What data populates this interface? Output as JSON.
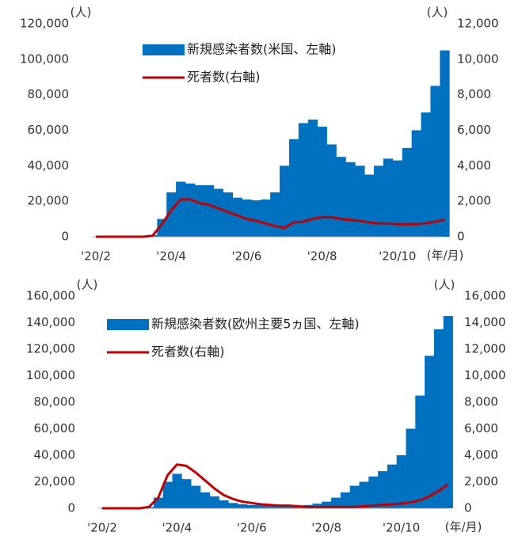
{
  "chart_data": [
    {
      "type": "bar_line",
      "y_unit": "(人)",
      "y2_unit": "(人)",
      "x_unit": "(年/月)",
      "categories": [
        "'20/2",
        null,
        null,
        null,
        null,
        null,
        null,
        null,
        "'20/4",
        null,
        null,
        null,
        null,
        null,
        null,
        null,
        "'20/6",
        null,
        null,
        null,
        null,
        null,
        null,
        null,
        "'20/8",
        null,
        null,
        null,
        null,
        null,
        null,
        null,
        "'20/10",
        null,
        null,
        null,
        null,
        null
      ],
      "series": [
        {
          "name": "新規感染者数(米国、左軸)",
          "type": "bar",
          "color": "#0070c0",
          "values": [
            0,
            0,
            0,
            0,
            0,
            0,
            1000,
            10000,
            25000,
            31000,
            30000,
            29000,
            29000,
            27000,
            25000,
            22000,
            21000,
            20500,
            21000,
            25000,
            40000,
            55000,
            64000,
            66000,
            62000,
            52000,
            45000,
            42000,
            40000,
            35000,
            40000,
            44000,
            43000,
            50000,
            60000,
            70000,
            85000,
            105000
          ]
        },
        {
          "name": "死者数(右軸)",
          "type": "line",
          "axis": "y2",
          "color": "#c00000",
          "values": [
            0,
            0,
            0,
            0,
            0,
            0,
            50,
            700,
            1500,
            2100,
            2100,
            1900,
            1800,
            1600,
            1400,
            1200,
            1000,
            900,
            750,
            600,
            500,
            800,
            850,
            1000,
            1100,
            1100,
            1000,
            950,
            900,
            800,
            750,
            750,
            700,
            700,
            700,
            750,
            850,
            950
          ]
        }
      ],
      "ylim": [
        0,
        120000
      ],
      "yticks": [
        0,
        {
          "value": 20000,
          "label": "20,000"
        },
        {
          "value": 40000,
          "label": "40,000"
        },
        {
          "value": 60000,
          "label": "60,000"
        },
        {
          "value": 80000,
          "label": "80,000"
        },
        {
          "value": 100000,
          "label": "100,000"
        },
        {
          "value": 120000,
          "label": "120,000"
        }
      ],
      "y2lim": [
        0,
        12000
      ],
      "y2ticks": [
        0,
        {
          "value": 2000,
          "label": "2,000"
        },
        {
          "value": 4000,
          "label": "4,000"
        },
        {
          "value": 6000,
          "label": "6,000"
        },
        {
          "value": 8000,
          "label": "8,000"
        },
        {
          "value": 10000,
          "label": "10,000"
        },
        {
          "value": 12000,
          "label": "12,000"
        }
      ]
    },
    {
      "type": "bar_line",
      "y_unit": "(人)",
      "y2_unit": "(人)",
      "x_unit": "(年/月)",
      "categories": [
        "'20/2",
        null,
        null,
        null,
        null,
        null,
        null,
        null,
        "'20/4",
        null,
        null,
        null,
        null,
        null,
        null,
        null,
        "'20/6",
        null,
        null,
        null,
        null,
        null,
        null,
        null,
        "'20/8",
        null,
        null,
        null,
        null,
        null,
        null,
        null,
        "'20/10",
        null,
        null,
        null,
        null,
        null
      ],
      "series": [
        {
          "name": "新規感染者数(欧州主要5ヵ国、左軸)",
          "type": "bar",
          "color": "#0070c0",
          "values": [
            0,
            0,
            0,
            0,
            0,
            1000,
            8000,
            20000,
            26000,
            22000,
            17000,
            12000,
            9000,
            6000,
            4000,
            3000,
            2500,
            2500,
            2000,
            2000,
            2000,
            2000,
            2500,
            3500,
            5000,
            8000,
            12000,
            17000,
            20000,
            24000,
            28000,
            33000,
            40000,
            60000,
            85000,
            115000,
            135000,
            145000
          ]
        },
        {
          "name": "死者数(右軸)",
          "type": "line",
          "axis": "y2",
          "color": "#c00000",
          "values": [
            0,
            0,
            0,
            0,
            0,
            100,
            800,
            2500,
            3300,
            3200,
            2700,
            2100,
            1500,
            1000,
            700,
            500,
            400,
            300,
            250,
            200,
            200,
            150,
            100,
            100,
            100,
            100,
            100,
            100,
            150,
            200,
            250,
            300,
            350,
            450,
            600,
            900,
            1300,
            1800
          ]
        }
      ],
      "ylim": [
        0,
        160000
      ],
      "yticks": [
        0,
        {
          "value": 20000,
          "label": "20,000"
        },
        {
          "value": 40000,
          "label": "40,000"
        },
        {
          "value": 60000,
          "label": "60,000"
        },
        {
          "value": 80000,
          "label": "80,000"
        },
        {
          "value": 100000,
          "label": "100,000"
        },
        {
          "value": 120000,
          "label": "120,000"
        },
        {
          "value": 140000,
          "label": "140,000"
        },
        {
          "value": 160000,
          "label": "160,000"
        }
      ],
      "y2lim": [
        0,
        16000
      ],
      "y2ticks": [
        0,
        {
          "value": 2000,
          "label": "2,000"
        },
        {
          "value": 4000,
          "label": "4,000"
        },
        {
          "value": 6000,
          "label": "6,000"
        },
        {
          "value": 8000,
          "label": "8,000"
        },
        {
          "value": 10000,
          "label": "10,000"
        },
        {
          "value": 12000,
          "label": "12,000"
        },
        {
          "value": 14000,
          "label": "14,000"
        },
        {
          "value": 16000,
          "label": "16,000"
        }
      ]
    }
  ]
}
